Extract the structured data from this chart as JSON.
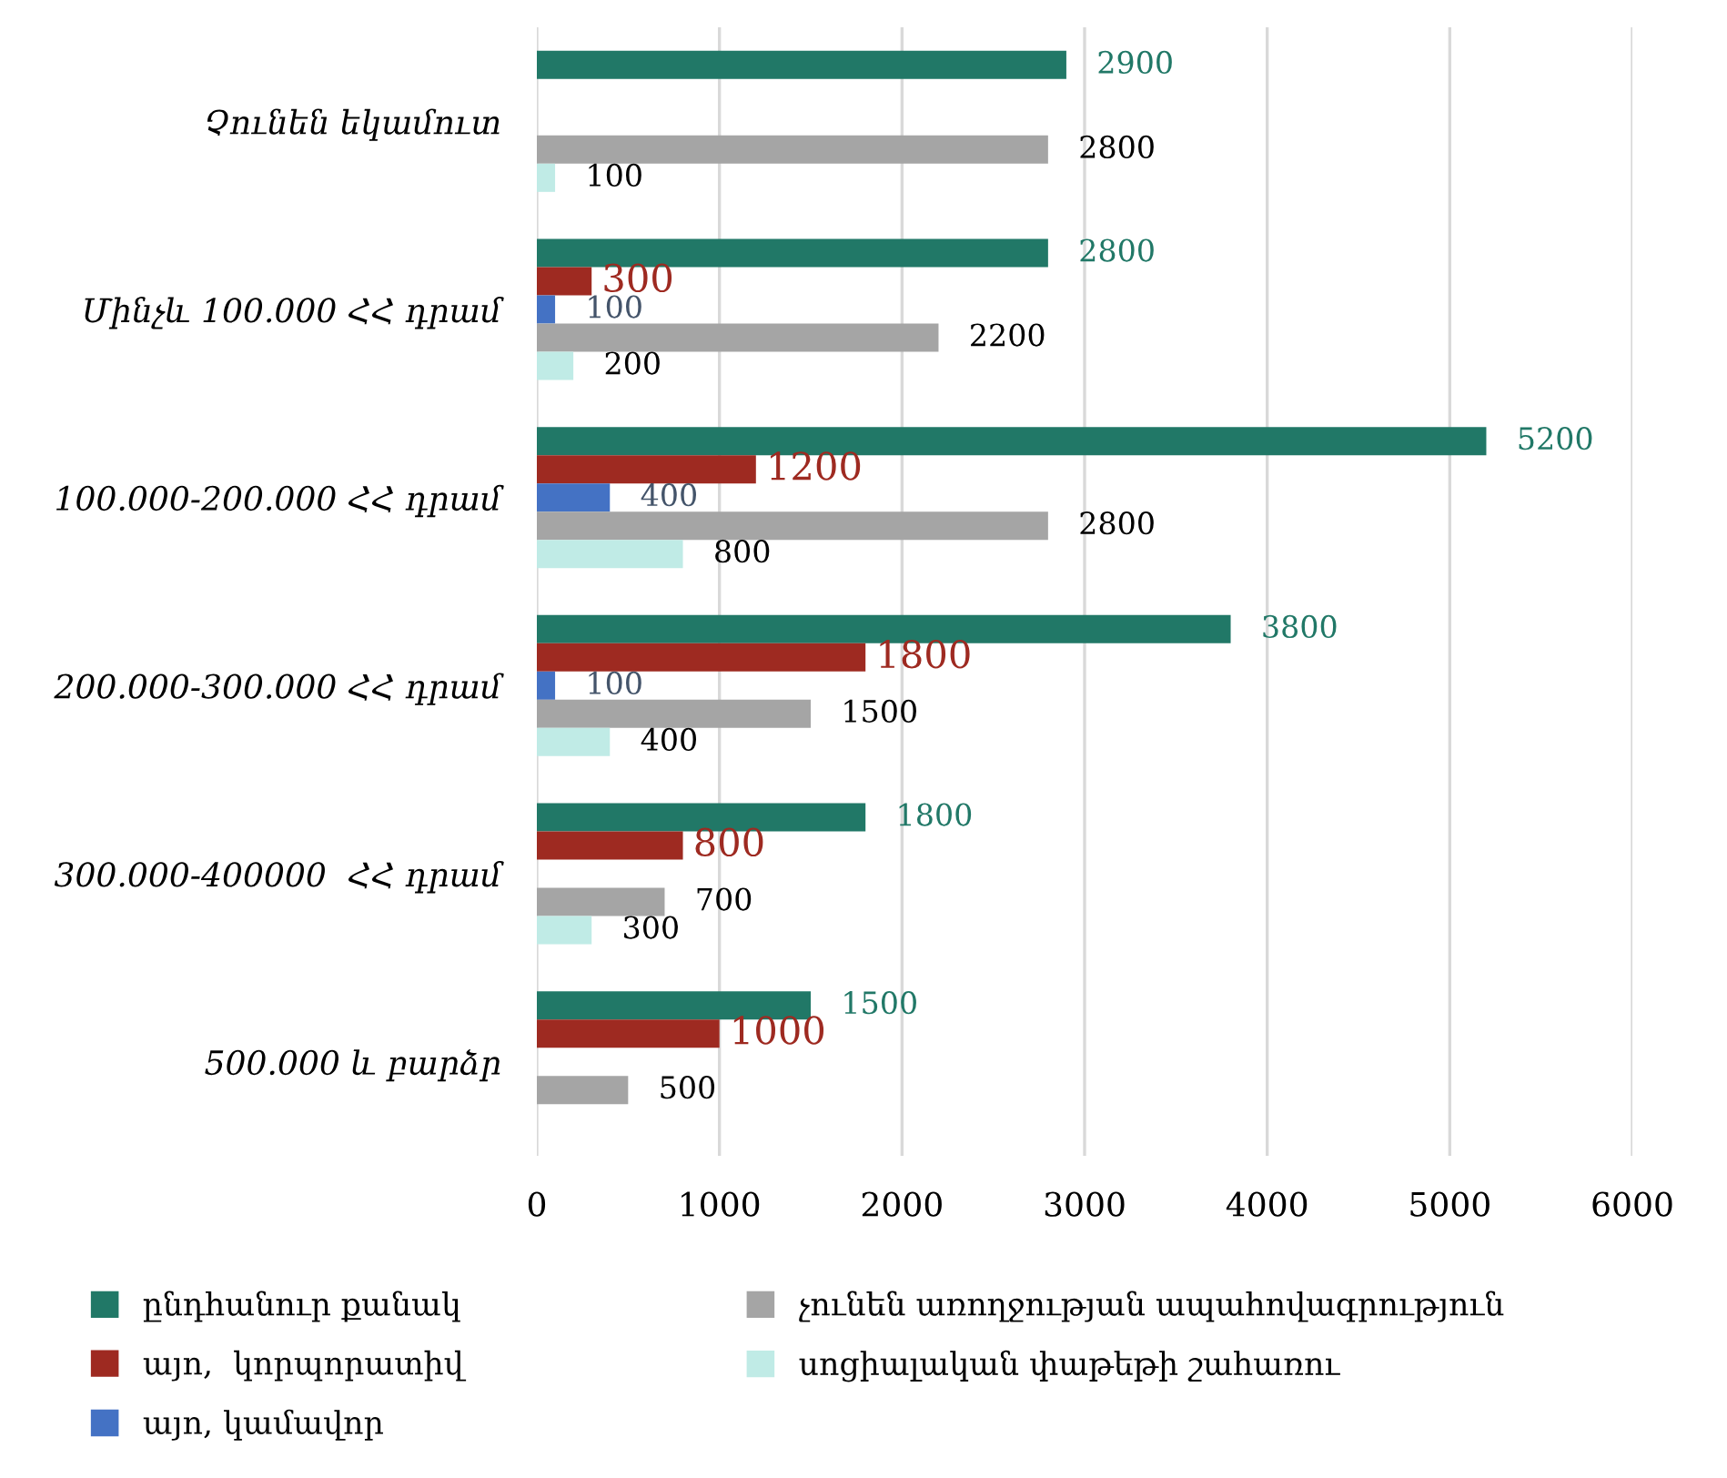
{
  "chart_data": {
    "type": "bar",
    "orientation": "horizontal",
    "categories": [
      "Չունեն եկամուտ",
      "Մինչև 100.000 ՀՀ դրամ",
      "100.000-200.000 ՀՀ դրամ",
      "200.000-300.000 ՀՀ դրամ",
      "300.000-400000  ՀՀ դրամ",
      "500.000 և բարձր"
    ],
    "series": [
      {
        "name": "ընդհանուր քանակ",
        "color": "#217867",
        "values": [
          2900,
          2800,
          5200,
          3800,
          1800,
          1500
        ]
      },
      {
        "name": "այո,  կորպորատիվ",
        "color": "#9e2a21",
        "values": [
          null,
          300,
          1200,
          1800,
          800,
          1000
        ]
      },
      {
        "name": "այո, կամավոր",
        "color": "#4472c4",
        "values": [
          null,
          100,
          400,
          100,
          null,
          null
        ]
      },
      {
        "name": "չունեն առողջության ապահովագրություն",
        "color": "#a5a5a5",
        "values": [
          2800,
          2200,
          2800,
          1500,
          700,
          500
        ]
      },
      {
        "name": "սոցիալական փաթեթի շահառու",
        "color": "#c0ebe6",
        "values": [
          100,
          200,
          800,
          400,
          300,
          null
        ]
      }
    ],
    "xlim": [
      0,
      6000
    ],
    "xticks": [
      0,
      1000,
      2000,
      3000,
      4000,
      5000,
      6000
    ],
    "grid": "x",
    "legend": "bottom",
    "data_labels": true
  }
}
